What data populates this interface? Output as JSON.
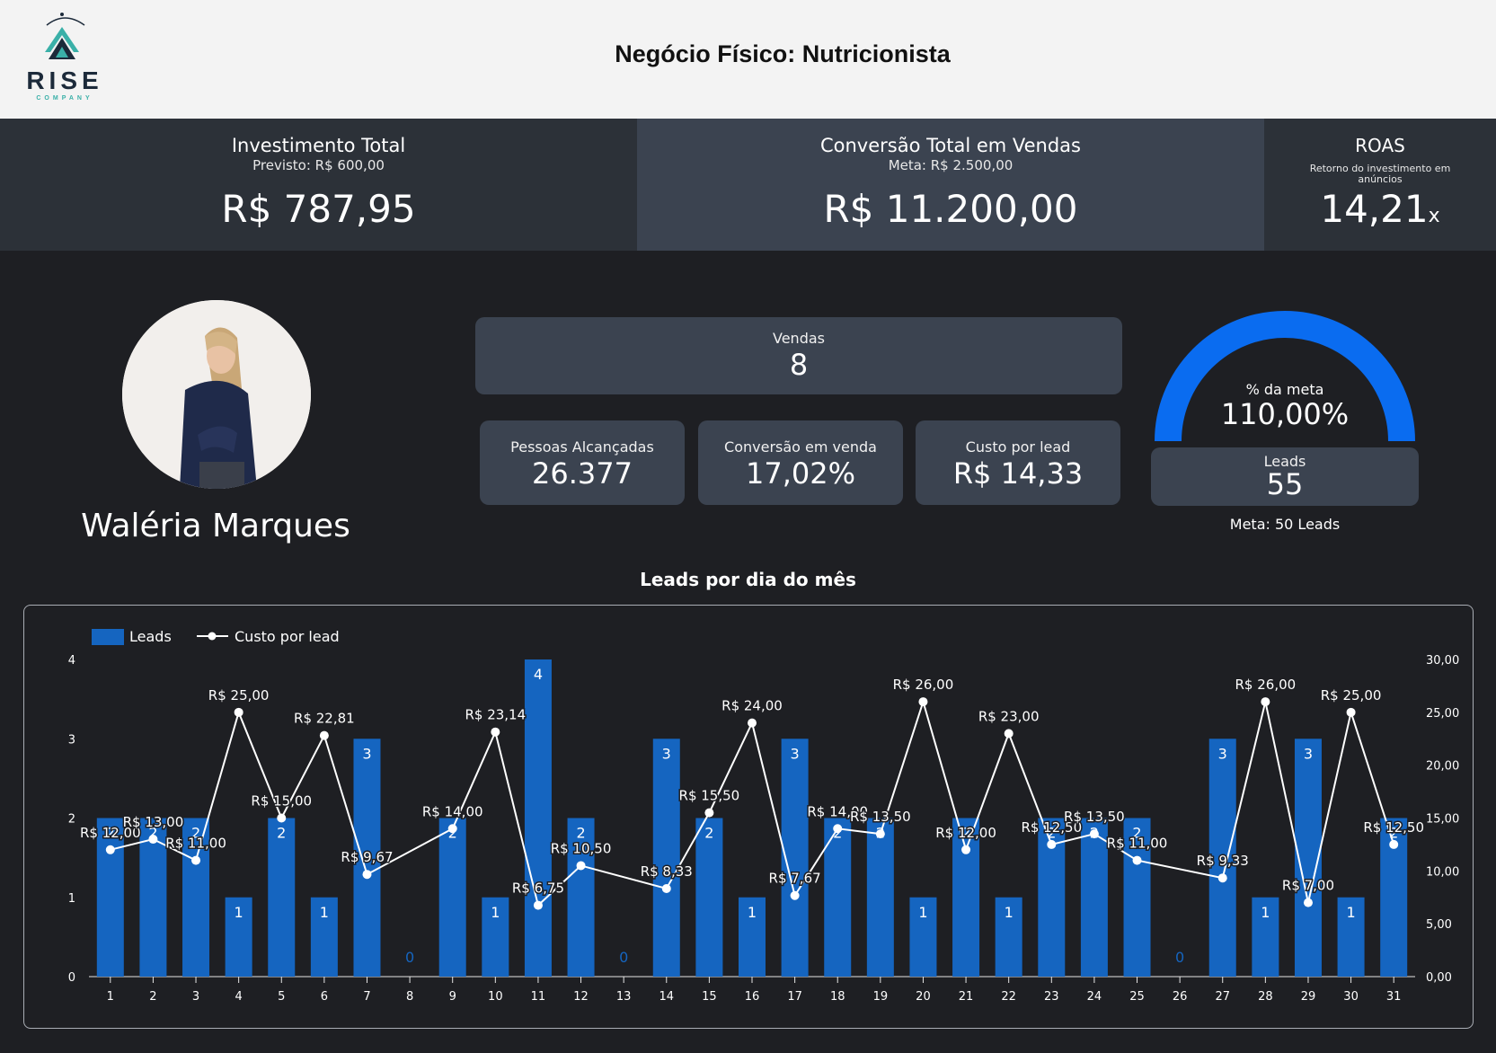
{
  "header": {
    "logo_word": "RISE",
    "logo_sub": "COMPANY",
    "title": "Negócio Físico: Nutricionista"
  },
  "kpis": {
    "investimento": {
      "label": "Investimento Total",
      "sub": "Previsto: R$ 600,00",
      "value": "R$ 787,95"
    },
    "conversao": {
      "label": "Conversão Total em Vendas",
      "sub": "Meta: R$ 2.500,00",
      "value": "R$ 11.200,00"
    },
    "roas": {
      "label": "ROAS",
      "sub": "Retorno do investimento em anúncios",
      "value": "14,21",
      "suffix": "x"
    }
  },
  "profile": {
    "name": "Waléria Marques"
  },
  "cards": {
    "vendas": {
      "label": "Vendas",
      "value": "8"
    },
    "pessoas": {
      "label": "Pessoas Alcançadas",
      "value": "26.377"
    },
    "conversao_venda": {
      "label": "Conversão em venda",
      "value": "17,02%"
    },
    "custo_lead": {
      "label": "Custo por lead",
      "value": "R$ 14,33"
    },
    "leads": {
      "label": "Leads",
      "value": "55"
    }
  },
  "gauge": {
    "label": "% da meta",
    "value": "110,00%",
    "fraction": 1.0,
    "color": "#0a6cf0"
  },
  "meta_leads": "Meta: 50 Leads",
  "colors": {
    "bar": "#1565c0",
    "line": "#ffffff",
    "zero_label": "#1565c0"
  },
  "chart_data": {
    "type": "bar",
    "title": "Leads por dia do mês",
    "legend": [
      "Leads",
      "Custo por lead"
    ],
    "legend_position": "top-left",
    "categories": [
      "1",
      "2",
      "3",
      "4",
      "5",
      "6",
      "7",
      "8",
      "9",
      "10",
      "11",
      "12",
      "13",
      "14",
      "15",
      "16",
      "17",
      "18",
      "19",
      "20",
      "21",
      "22",
      "23",
      "24",
      "25",
      "26",
      "27",
      "28",
      "29",
      "30",
      "31"
    ],
    "series": [
      {
        "name": "Leads",
        "type": "bar",
        "axis": "left",
        "values": [
          2,
          2,
          2,
          1,
          2,
          1,
          3,
          0,
          2,
          1,
          4,
          2,
          0,
          3,
          2,
          1,
          3,
          2,
          2,
          1,
          2,
          1,
          2,
          2,
          2,
          0,
          3,
          1,
          3,
          1,
          2
        ]
      },
      {
        "name": "Custo por lead",
        "type": "line",
        "axis": "right",
        "values": [
          12,
          13,
          11,
          25,
          15,
          22.81,
          9.67,
          null,
          14,
          23.14,
          6.75,
          10.5,
          null,
          8.33,
          15.5,
          24,
          7.67,
          14,
          13.5,
          26,
          12,
          23,
          12.5,
          13.5,
          11,
          null,
          9.33,
          26,
          7,
          25,
          12.5
        ],
        "labels": [
          "R$ 12,00",
          "R$ 13,00",
          "R$ 11,00",
          "R$ 25,00",
          "R$ 15,00",
          "R$ 22,81",
          "R$ 9,67",
          "",
          "R$ 14,00",
          "R$ 23,14",
          "R$ 6,75",
          "R$ 10,50",
          "",
          "R$ 8,33",
          "R$ 15,50",
          "R$ 24,00",
          "R$ 7,67",
          "R$ 14,00",
          "R$ 13,50",
          "R$ 26,00",
          "R$ 12,00",
          "R$ 23,00",
          "R$ 12,50",
          "R$ 13,50",
          "R$ 11,00",
          "",
          "R$ 9,33",
          "R$ 26,00",
          "R$ 7,00",
          "R$ 25,00",
          "R$ 12,50"
        ]
      }
    ],
    "y_left": {
      "ticks": [
        "0",
        "1",
        "2",
        "3",
        "4"
      ],
      "range": [
        0,
        4
      ]
    },
    "y_right": {
      "ticks": [
        "0,00",
        "5,00",
        "10,00",
        "15,00",
        "20,00",
        "25,00",
        "30,00"
      ],
      "range": [
        0,
        30
      ]
    },
    "grid": false
  }
}
